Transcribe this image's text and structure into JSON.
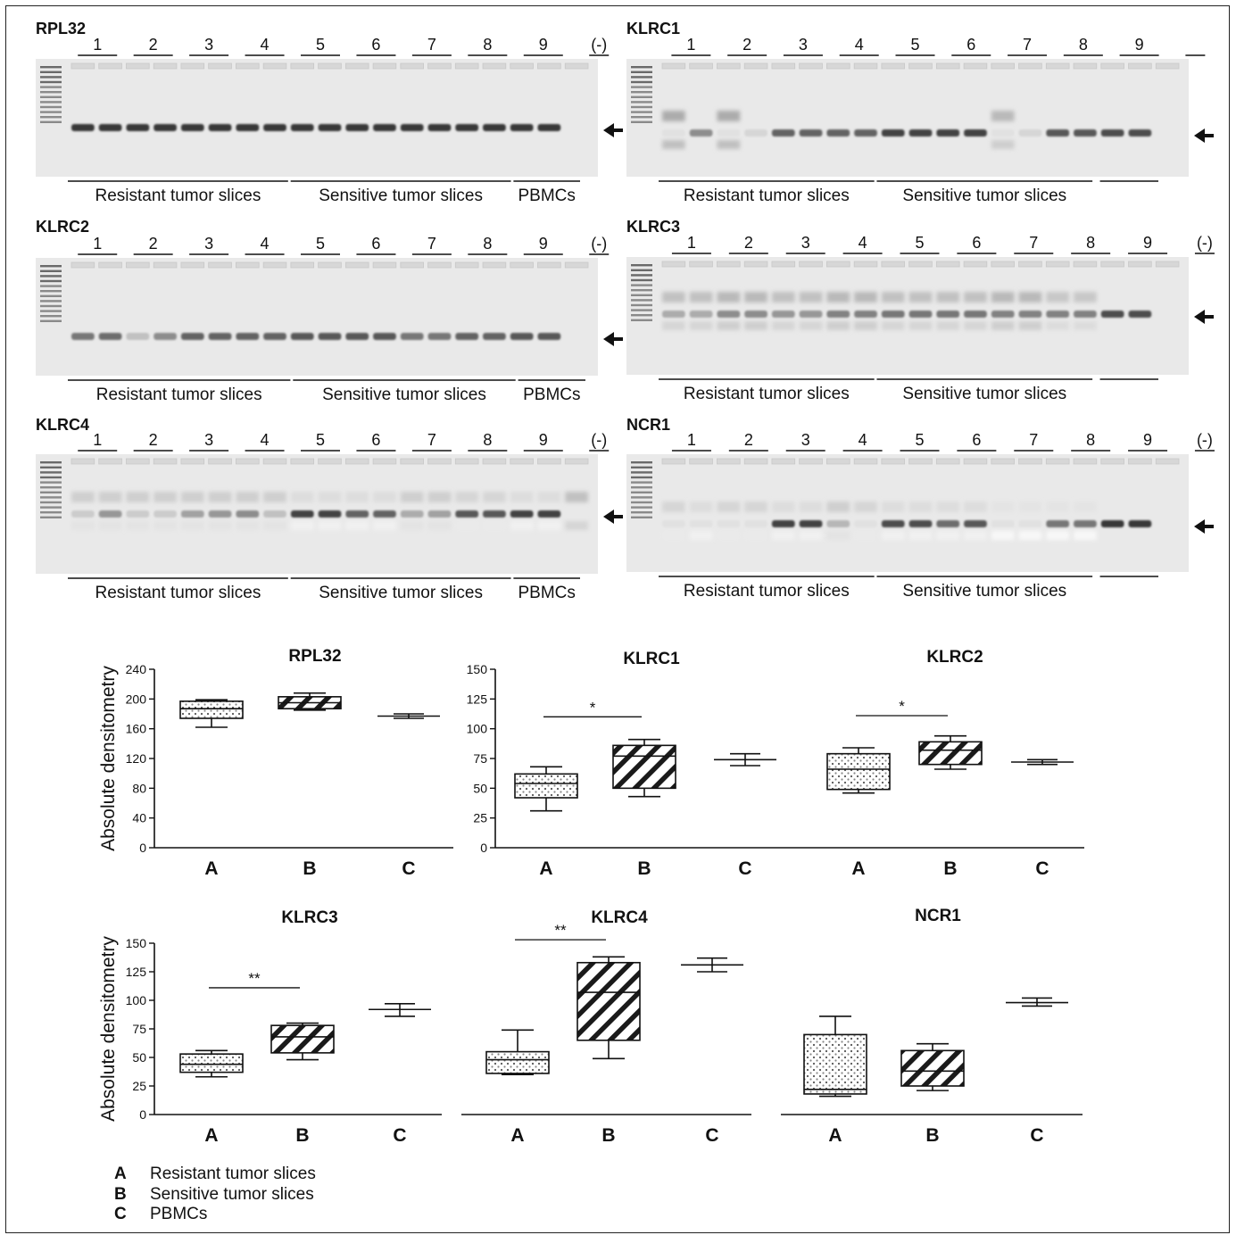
{
  "gels": [
    {
      "id": "g1",
      "title": "RPL32",
      "lanes": [
        "1",
        "2",
        "3",
        "4",
        "5",
        "6",
        "7",
        "8",
        "9",
        "(-)"
      ],
      "groups": [
        "Resistant tumor slices",
        "Sensitive tumor slices",
        "PBMCs"
      ],
      "band_intensity": [
        0.85,
        0.85,
        0.85,
        0.85,
        0.85,
        0.85,
        0.85,
        0.85,
        0.85,
        0.85,
        0.85,
        0.85,
        0.85,
        0.85,
        0.85,
        0.85,
        0.85,
        0.85,
        0
      ],
      "smear": [
        0,
        0,
        0,
        0,
        0,
        0,
        0,
        0,
        0,
        0,
        0,
        0,
        0,
        0,
        0,
        0,
        0,
        0,
        0
      ]
    },
    {
      "id": "g2",
      "title": "KLRC1",
      "lanes": [
        "1",
        "2",
        "3",
        "4",
        "5",
        "6",
        "7",
        "8",
        "9",
        ""
      ],
      "groups": [
        "Resistant tumor slices",
        "Sensitive tumor slices",
        ""
      ],
      "band_intensity": [
        0.05,
        0.45,
        0.05,
        0.1,
        0.65,
        0.65,
        0.65,
        0.65,
        0.8,
        0.8,
        0.8,
        0.8,
        0.05,
        0.1,
        0.7,
        0.7,
        0.75,
        0.75,
        0
      ],
      "smear": [
        0.45,
        0,
        0.45,
        0,
        0,
        0,
        0,
        0,
        0,
        0,
        0,
        0,
        0.35,
        0,
        0,
        0,
        0,
        0,
        0
      ]
    },
    {
      "id": "g3",
      "title": "KLRC2",
      "lanes": [
        "1",
        "2",
        "3",
        "4",
        "5",
        "6",
        "7",
        "8",
        "9",
        "(-)"
      ],
      "groups": [
        "Resistant tumor slices",
        "Sensitive tumor slices",
        "PBMCs"
      ],
      "band_intensity": [
        0.55,
        0.6,
        0.2,
        0.45,
        0.65,
        0.65,
        0.65,
        0.65,
        0.7,
        0.7,
        0.7,
        0.7,
        0.55,
        0.55,
        0.65,
        0.65,
        0.7,
        0.7,
        0
      ],
      "smear": [
        0,
        0,
        0,
        0,
        0,
        0,
        0,
        0,
        0,
        0,
        0,
        0,
        0,
        0,
        0,
        0,
        0,
        0,
        0
      ]
    },
    {
      "id": "g4",
      "title": "KLRC3",
      "lanes": [
        "1",
        "2",
        "3",
        "4",
        "5",
        "6",
        "7",
        "8",
        "9",
        "(-)"
      ],
      "groups": [
        "Resistant tumor slices",
        "Sensitive tumor slices",
        ""
      ],
      "band_intensity": [
        0.3,
        0.3,
        0.45,
        0.45,
        0.4,
        0.4,
        0.5,
        0.5,
        0.55,
        0.55,
        0.55,
        0.55,
        0.5,
        0.5,
        0.5,
        0.5,
        0.75,
        0.75,
        0
      ],
      "smear": [
        0.3,
        0.3,
        0.35,
        0.35,
        0.3,
        0.3,
        0.35,
        0.35,
        0.3,
        0.3,
        0.3,
        0.3,
        0.35,
        0.35,
        0.25,
        0.25,
        0,
        0,
        0
      ]
    },
    {
      "id": "g5",
      "title": "KLRC4",
      "lanes": [
        "1",
        "2",
        "3",
        "4",
        "5",
        "6",
        "7",
        "8",
        "9",
        "(-)"
      ],
      "groups": [
        "Resistant tumor slices",
        "Sensitive tumor slices",
        "PBMCs"
      ],
      "band_intensity": [
        0.15,
        0.4,
        0.15,
        0.15,
        0.35,
        0.4,
        0.45,
        0.2,
        0.8,
        0.8,
        0.65,
        0.65,
        0.3,
        0.35,
        0.7,
        0.7,
        0.8,
        0.8,
        0
      ],
      "smear": [
        0.2,
        0.2,
        0.2,
        0.2,
        0.2,
        0.2,
        0.2,
        0.2,
        0.1,
        0.1,
        0.1,
        0.1,
        0.2,
        0.2,
        0.15,
        0.15,
        0.1,
        0.1,
        0.3
      ]
    },
    {
      "id": "g6",
      "title": "NCR1",
      "lanes": [
        "1",
        "2",
        "3",
        "4",
        "5",
        "6",
        "7",
        "8",
        "9",
        "(-)"
      ],
      "groups": [
        "Resistant tumor slices",
        "Sensitive tumor slices",
        ""
      ],
      "band_intensity": [
        0.05,
        0.05,
        0.05,
        0.05,
        0.8,
        0.8,
        0.25,
        0.05,
        0.75,
        0.75,
        0.6,
        0.7,
        0.05,
        0.05,
        0.55,
        0.55,
        0.85,
        0.85,
        0
      ],
      "smear": [
        0.15,
        0.1,
        0.15,
        0.15,
        0.1,
        0.1,
        0.2,
        0.15,
        0.1,
        0.1,
        0.1,
        0.1,
        0.05,
        0.05,
        0.05,
        0.05,
        0,
        0,
        0
      ]
    }
  ],
  "chart_data": [
    {
      "type": "box",
      "title": "KLRC1",
      "ylabel": "",
      "ylim": [
        0,
        150
      ],
      "yticks": [
        0,
        25,
        50,
        75,
        100,
        125,
        150
      ],
      "categories": [
        "A",
        "B",
        "C"
      ],
      "boxes": [
        {
          "min": 31,
          "q1": 42,
          "median": 54,
          "q3": 62,
          "max": 68,
          "pattern": "dots"
        },
        {
          "min": 43,
          "q1": 50,
          "median": 77,
          "q3": 86,
          "max": 91,
          "pattern": "hatch"
        },
        {
          "min": 69,
          "q1": 74,
          "median": 74,
          "q3": 74,
          "max": 79,
          "pattern": "none"
        }
      ],
      "significance": [
        {
          "from": "A",
          "to": "B",
          "label": "*",
          "y": 110
        }
      ]
    },
    {
      "type": "box",
      "title": "KLRC2",
      "ylabel": "",
      "ylim": [
        0,
        150
      ],
      "yticks": [],
      "categories": [
        "A",
        "B",
        "C"
      ],
      "boxes": [
        {
          "min": 46,
          "q1": 49,
          "median": 66,
          "q3": 79,
          "max": 84,
          "pattern": "dots"
        },
        {
          "min": 66,
          "q1": 70,
          "median": 82,
          "q3": 89,
          "max": 94,
          "pattern": "hatch"
        },
        {
          "min": 70,
          "q1": 72,
          "median": 72,
          "q3": 72,
          "max": 74,
          "pattern": "none"
        }
      ],
      "significance": [
        {
          "from": "A",
          "to": "B",
          "label": "*",
          "y": 111
        }
      ]
    },
    {
      "type": "box",
      "title": "RPL32",
      "ylabel": "Absolute densitometry",
      "ylim": [
        0,
        240
      ],
      "yticks": [
        0,
        40,
        80,
        120,
        160,
        200,
        240
      ],
      "categories": [
        "A",
        "B",
        "C"
      ],
      "boxes": [
        {
          "min": 162,
          "q1": 174,
          "median": 187,
          "q3": 197,
          "max": 199,
          "pattern": "dots"
        },
        {
          "min": 185,
          "q1": 187,
          "median": 195,
          "q3": 203,
          "max": 208,
          "pattern": "hatch"
        },
        {
          "min": 174,
          "q1": 177,
          "median": 177,
          "q3": 177,
          "max": 180,
          "pattern": "none"
        }
      ],
      "significance": []
    },
    {
      "type": "box",
      "title": "KLRC3",
      "ylabel": "Absolute densitometry",
      "ylim": [
        0,
        150
      ],
      "yticks": [
        0,
        25,
        50,
        75,
        100,
        125,
        150
      ],
      "categories": [
        "A",
        "B",
        "C"
      ],
      "boxes": [
        {
          "min": 33,
          "q1": 37,
          "median": 44,
          "q3": 53,
          "max": 56,
          "pattern": "dots"
        },
        {
          "min": 48,
          "q1": 54,
          "median": 68,
          "q3": 78,
          "max": 80,
          "pattern": "hatch"
        },
        {
          "min": 86,
          "q1": 92,
          "median": 92,
          "q3": 92,
          "max": 97,
          "pattern": "none"
        }
      ],
      "significance": [
        {
          "from": "A",
          "to": "B",
          "label": "**",
          "y": 111
        }
      ]
    },
    {
      "type": "box",
      "title": "KLRC4",
      "ylabel": "",
      "ylim": [
        0,
        150
      ],
      "yticks": [],
      "categories": [
        "A",
        "B",
        "C"
      ],
      "boxes": [
        {
          "min": 35,
          "q1": 36,
          "median": 48,
          "q3": 55,
          "max": 74,
          "pattern": "dots"
        },
        {
          "min": 49,
          "q1": 65,
          "median": 107,
          "q3": 133,
          "max": 138,
          "pattern": "hatch"
        },
        {
          "min": 125,
          "q1": 131,
          "median": 131,
          "q3": 131,
          "max": 137,
          "pattern": "none"
        }
      ],
      "significance": [
        {
          "from": "A",
          "to": "B",
          "label": "**",
          "y": 153
        }
      ]
    },
    {
      "type": "box",
      "title": "NCR1",
      "ylabel": "",
      "ylim": [
        0,
        150
      ],
      "yticks": [],
      "categories": [
        "A",
        "B",
        "C"
      ],
      "boxes": [
        {
          "min": 16,
          "q1": 18,
          "median": 22,
          "q3": 70,
          "max": 86,
          "pattern": "dots"
        },
        {
          "min": 21,
          "q1": 25,
          "median": 38,
          "q3": 56,
          "max": 62,
          "pattern": "hatch"
        },
        {
          "min": 95,
          "q1": 98,
          "median": 98,
          "q3": 98,
          "max": 102,
          "pattern": "none"
        }
      ],
      "significance": []
    }
  ],
  "legend": [
    {
      "key": "A",
      "text": "Resistant tumor slices"
    },
    {
      "key": "B",
      "text": "Sensitive tumor slices"
    },
    {
      "key": "C",
      "text": "PBMCs"
    }
  ]
}
